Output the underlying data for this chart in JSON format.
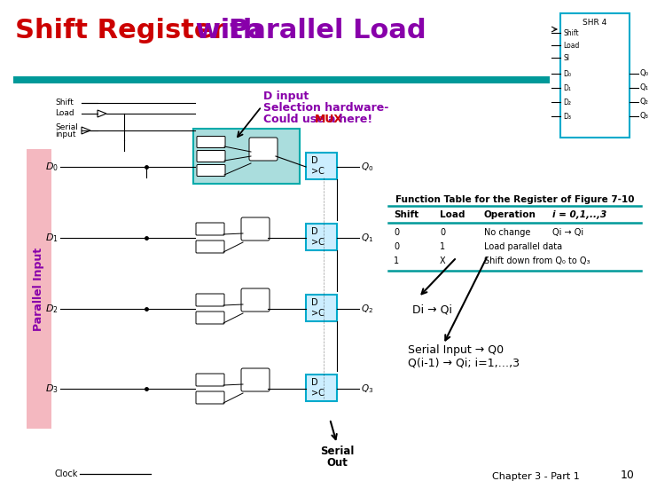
{
  "title_shift": "Shift Register",
  "title_with": " with ",
  "title_parallel": "Parallel Load",
  "title_color_shift": "#cc0000",
  "title_color_with": "#8800aa",
  "title_color_parallel": "#8800aa",
  "bg_color": "#ffffff",
  "teal_bar_color": "#009999",
  "annotation_color": "#8800aa",
  "mux_color": "#cc0000",
  "parallel_input_color": "#8800aa",
  "pink_bar_color": "#f4b8c0",
  "flip_flop_bg": "#cceeff",
  "flip_flop_border": "#00aacc",
  "mux_block_bg": "#aadddd",
  "mux_block_border": "#00aaaa",
  "gate_bg": "#ffffff",
  "function_table_title": "Function Table for the Register of Figure 7-10",
  "table_col_shift": "Shift",
  "table_col_load": "Load",
  "table_col_operation": "Operation",
  "table_col_i": "i = 0,1,..,3",
  "table_row1": [
    "0",
    "0",
    "No change",
    "Qi → Qi"
  ],
  "table_row2": [
    "0",
    "1",
    "Load parallel data",
    ""
  ],
  "table_row3": [
    "1",
    "X",
    "Shift down from Q₀ to Q₃",
    ""
  ],
  "di_annotation": "Di → Qi",
  "serial_annotation_line1": "Serial Input → Q0",
  "serial_annotation_line2": "Q(i-1) → Qi; i=1,…,3",
  "serial_out_label": "Serial\nOut",
  "chapter_text": "Chapter 3 - Part 1",
  "page_num": "10",
  "clock_label": "Clock",
  "shift_label": "Shift",
  "load_label": "Load",
  "serial_input_label1": "Serial",
  "serial_input_label2": "input",
  "parallel_input_label": "Parallel Input",
  "shr4_label": "SHR 4",
  "shr4_inputs": [
    "Shift",
    "Load",
    "SI",
    "D₀",
    "D₁",
    "D₂",
    "D₃"
  ],
  "shr4_outputs": [
    "Q₀",
    "Q₁",
    "Q₂",
    "Q₃"
  ],
  "d_ann_line1": "D input",
  "d_ann_line2": "Selection hardware-",
  "d_ann_line3_pre": "Could use a ",
  "d_ann_line3_mux": "MUX",
  "d_ann_line3_post": " here!"
}
